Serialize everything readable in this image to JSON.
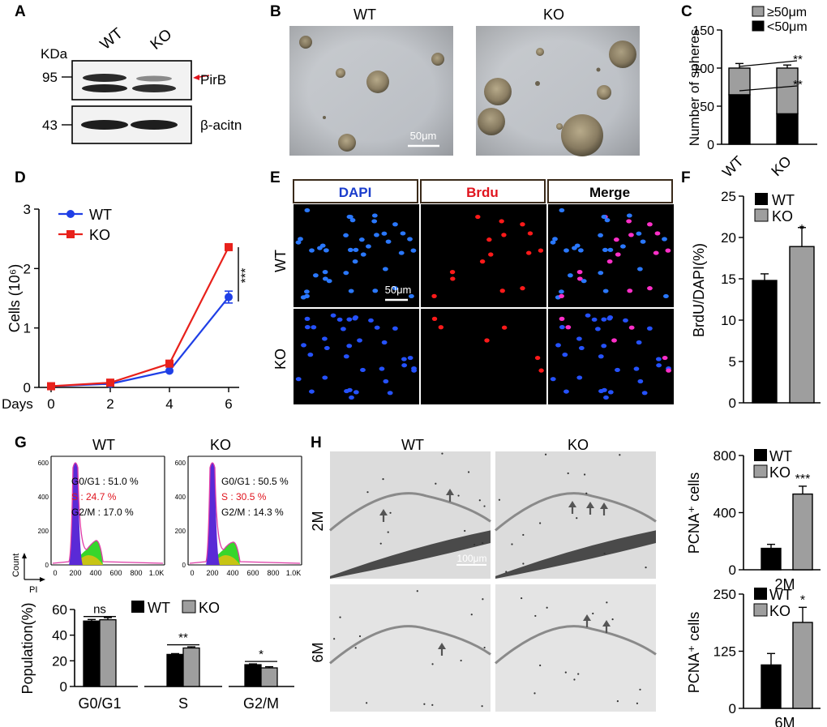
{
  "figure": {
    "panel_labels": [
      "A",
      "B",
      "C",
      "D",
      "E",
      "F",
      "G",
      "H"
    ],
    "wt": "WT",
    "ko": "KO"
  },
  "panelA": {
    "kda": "KDa",
    "marker_95": "95",
    "marker_43": "43",
    "pirb": "PirB",
    "actin": "β-acitn"
  },
  "panelB": {
    "scale_bar": "50μm"
  },
  "panelE": {
    "headers": [
      "DAPI",
      "Brdu",
      "Merge"
    ],
    "header_colors": [
      "#1a3ccc",
      "#e0141e",
      "#000000"
    ],
    "scale_bar": "50μm"
  },
  "panelG": {
    "wt_stats": {
      "g0g1": "G0/G1 : 51.0 %",
      "s": "S : 24.7 %",
      "g2m": "G2/M : 17.0 %"
    },
    "ko_stats": {
      "g0g1": "G0/G1 : 50.5 %",
      "s": "S : 30.5 %",
      "g2m": "G2/M : 14.3 %"
    },
    "s_color": "#e0141e",
    "y_axis_label": "Count",
    "x_axis_label": "PI",
    "hist_y_ticks": [
      "0",
      "200",
      "400",
      "600"
    ],
    "hist_x_ticks": [
      "0",
      "200",
      "400",
      "600",
      "800",
      "1.0K"
    ],
    "hist_x_ticks_short": [
      "0",
      "200",
      "400",
      "600",
      "800",
      "1.0K"
    ]
  },
  "panelH": {
    "rows": [
      "2M",
      "6M"
    ],
    "scale_bar": "100μm"
  },
  "chart_data": [
    {
      "id": "C",
      "type": "bar",
      "stacked": true,
      "categories": [
        "WT",
        "KO"
      ],
      "series": [
        {
          "name": "<50μm",
          "values": [
            65,
            40
          ],
          "errors": [
            6,
            5
          ],
          "color": "#000000"
        },
        {
          "name": "≥50μm",
          "values": [
            35,
            60
          ],
          "errors": [
            6,
            4
          ],
          "color": "#9e9e9e"
        }
      ],
      "xlabel": "",
      "ylabel": "Number of spheres",
      "ylim": [
        0,
        150
      ],
      "yticks": [
        0,
        50,
        100,
        150
      ],
      "annotations": [
        "**",
        "**"
      ]
    },
    {
      "id": "D",
      "type": "line",
      "x": [
        0,
        2,
        4,
        6
      ],
      "series": [
        {
          "name": "WT",
          "values": [
            0.02,
            0.06,
            0.28,
            1.52
          ],
          "errors": [
            0,
            0,
            0,
            0.1
          ],
          "color": "#1f3fe6"
        },
        {
          "name": "KO",
          "values": [
            0.02,
            0.08,
            0.4,
            2.36
          ],
          "errors": [
            0,
            0,
            0,
            0
          ],
          "color": "#e8211b"
        }
      ],
      "xlabel": "Days",
      "ylabel": "Cells (10⁶)",
      "ylim": [
        0,
        3
      ],
      "yticks": [
        0,
        1,
        2,
        3
      ],
      "xticks": [
        0,
        2,
        4,
        6
      ],
      "annotations": [
        "***"
      ]
    },
    {
      "id": "F",
      "type": "bar",
      "categories": [
        "WT",
        "KO"
      ],
      "series": [
        {
          "name": "BrdU/DAPI",
          "values": [
            14.8,
            18.9
          ],
          "errors": [
            0.8,
            2.3
          ],
          "colors": [
            "#000000",
            "#9e9e9e"
          ]
        }
      ],
      "xlabel": "",
      "ylabel": "BrdU/DAPI(%)",
      "ylim": [
        0,
        25
      ],
      "yticks": [
        0,
        5,
        10,
        15,
        20,
        25
      ],
      "annotations": [
        "*"
      ]
    },
    {
      "id": "G",
      "type": "bar",
      "categories": [
        "G0/G1",
        "S",
        "G2/M"
      ],
      "series": [
        {
          "name": "WT",
          "values": [
            51,
            25,
            17
          ],
          "errors": [
            1.2,
            0.6,
            0.6
          ],
          "color": "#000000"
        },
        {
          "name": "KO",
          "values": [
            52,
            30,
            14.5
          ],
          "errors": [
            1.6,
            0.9,
            0.9
          ],
          "color": "#9e9e9e"
        }
      ],
      "xlabel": "",
      "ylabel": "Population(%)",
      "ylim": [
        0,
        60
      ],
      "yticks": [
        0,
        20,
        40,
        60
      ],
      "annotations": [
        "ns",
        "**",
        "*"
      ]
    },
    {
      "id": "H2M",
      "type": "bar",
      "categories": [
        "WT",
        "KO"
      ],
      "series": [
        {
          "name": "PCNA+ cells",
          "values": [
            150,
            530
          ],
          "errors": [
            28,
            55
          ],
          "colors": [
            "#000000",
            "#9e9e9e"
          ]
        }
      ],
      "xlabel": "2M",
      "ylabel": "PCNA⁺ cells",
      "ylim": [
        0,
        800
      ],
      "yticks": [
        0,
        400,
        800
      ],
      "annotations": [
        "***"
      ]
    },
    {
      "id": "H6M",
      "type": "bar",
      "categories": [
        "WT",
        "KO"
      ],
      "series": [
        {
          "name": "PCNA+ cells",
          "values": [
            95,
            188
          ],
          "errors": [
            25,
            33
          ],
          "colors": [
            "#000000",
            "#9e9e9e"
          ]
        }
      ],
      "xlabel": "6M",
      "ylabel": "PCNA⁺ cells",
      "ylim": [
        0,
        250
      ],
      "yticks": [
        0,
        125,
        250
      ],
      "annotations": [
        "*"
      ]
    }
  ]
}
